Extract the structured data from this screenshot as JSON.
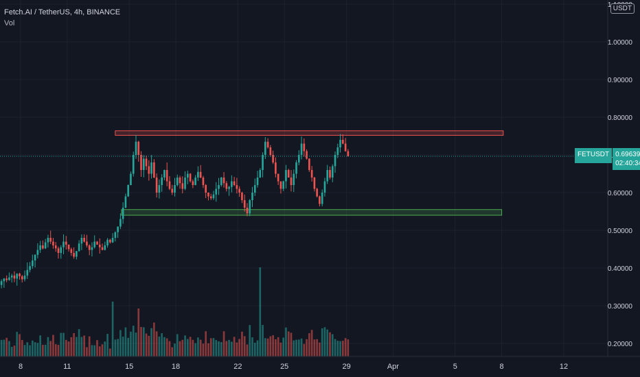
{
  "legend": {
    "title": "Fetch.AI / TetherUS, 4h, BINANCE",
    "vol_label": "Vol"
  },
  "quote_currency": "USDT",
  "price_tag": {
    "symbol": "FETUSDT",
    "price": "0.69639",
    "countdown": "02:40:34"
  },
  "colors": {
    "up": "#26a69a",
    "down": "#ef5350",
    "background": "#131722",
    "grid": "#1e222d",
    "resistance": "#ef5350",
    "support": "#4caf50"
  },
  "chart_data": {
    "type": "candlestick",
    "title": "Fetch.AI / TetherUS, 4h, BINANCE",
    "y_ticks": [
      1.1,
      1.0,
      0.9,
      0.8,
      0.7,
      0.6,
      0.5,
      0.4,
      0.3,
      0.2
    ],
    "y_tick_labels": [
      "1.10000",
      "1.00000",
      "0.90000",
      "0.80000",
      "0.70000",
      "0.60000",
      "0.50000",
      "0.40000",
      "0.30000",
      "0.20000"
    ],
    "ylim": [
      0.16,
      1.1
    ],
    "x_ticks": [
      {
        "label": "8",
        "day": 8
      },
      {
        "label": "11",
        "day": 11
      },
      {
        "label": "15",
        "day": 15
      },
      {
        "label": "18",
        "day": 18
      },
      {
        "label": "22",
        "day": 22
      },
      {
        "label": "25",
        "day": 25
      },
      {
        "label": "29",
        "day": 29
      },
      {
        "label": "Apr",
        "day": 32
      },
      {
        "label": "5",
        "day": 36
      },
      {
        "label": "8",
        "day": 39
      },
      {
        "label": "12",
        "day": 43
      }
    ],
    "current_price": 0.69639,
    "zones": [
      {
        "name": "resistance",
        "from_day": 14.1,
        "to_day": 39.1,
        "low": 0.752,
        "high": 0.764
      },
      {
        "name": "support",
        "from_day": 14.5,
        "to_day": 39.0,
        "low": 0.54,
        "high": 0.555
      }
    ],
    "candles_start_day": 6.6,
    "candle_interval_hours": 4,
    "closes": [
      0.355,
      0.365,
      0.372,
      0.368,
      0.375,
      0.38,
      0.372,
      0.385,
      0.378,
      0.37,
      0.38,
      0.395,
      0.405,
      0.42,
      0.435,
      0.448,
      0.46,
      0.452,
      0.468,
      0.48,
      0.47,
      0.46,
      0.452,
      0.44,
      0.455,
      0.47,
      0.462,
      0.45,
      0.44,
      0.43,
      0.445,
      0.465,
      0.48,
      0.47,
      0.46,
      0.448,
      0.455,
      0.47,
      0.462,
      0.455,
      0.448,
      0.46,
      0.475,
      0.468,
      0.48,
      0.495,
      0.51,
      0.53,
      0.56,
      0.59,
      0.62,
      0.65,
      0.7,
      0.735,
      0.7,
      0.66,
      0.69,
      0.67,
      0.65,
      0.68,
      0.64,
      0.6,
      0.62,
      0.64,
      0.66,
      0.63,
      0.61,
      0.6,
      0.62,
      0.64,
      0.625,
      0.61,
      0.64,
      0.65,
      0.63,
      0.62,
      0.64,
      0.655,
      0.64,
      0.62,
      0.6,
      0.59,
      0.585,
      0.595,
      0.61,
      0.62,
      0.64,
      0.625,
      0.61,
      0.615,
      0.63,
      0.62,
      0.61,
      0.6,
      0.58,
      0.56,
      0.545,
      0.58,
      0.6,
      0.62,
      0.64,
      0.66,
      0.7,
      0.735,
      0.72,
      0.7,
      0.68,
      0.65,
      0.63,
      0.61,
      0.63,
      0.66,
      0.64,
      0.62,
      0.65,
      0.68,
      0.7,
      0.73,
      0.71,
      0.69,
      0.66,
      0.64,
      0.61,
      0.59,
      0.57,
      0.6,
      0.63,
      0.66,
      0.64,
      0.67,
      0.7,
      0.72,
      0.74,
      0.73,
      0.71,
      0.696
    ]
  }
}
